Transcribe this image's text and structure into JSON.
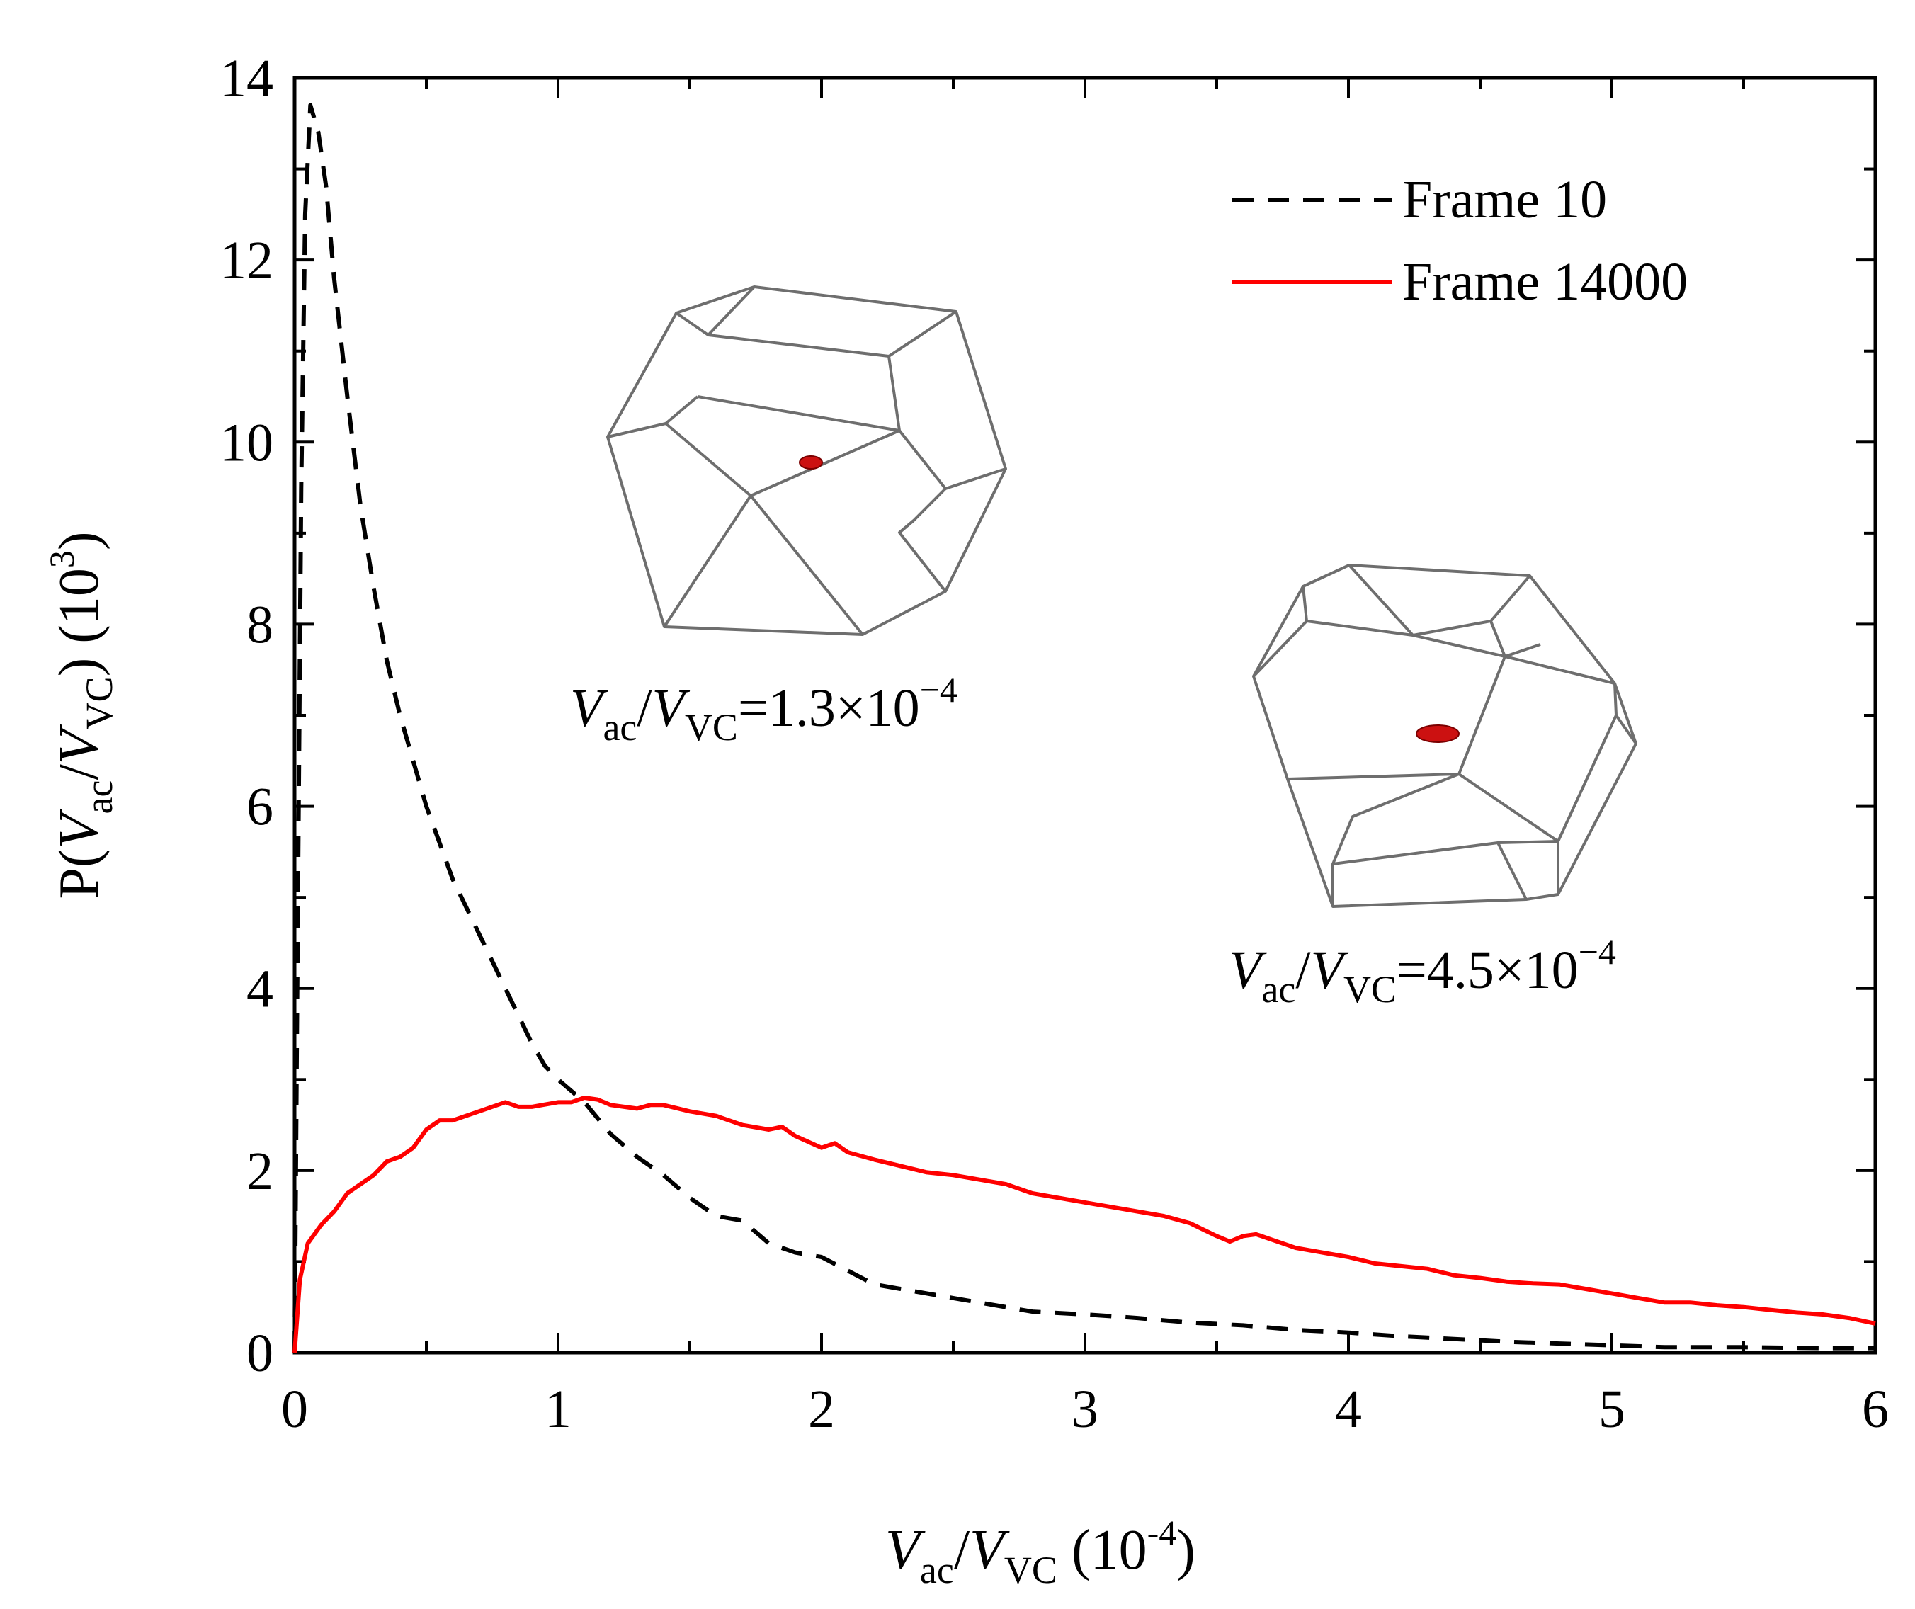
{
  "chart_data": {
    "type": "line",
    "xlabel": {
      "var1": "V",
      "sub1": "ac",
      "slash": "/",
      "var2": "V",
      "sub2": "VC",
      "unit_open": " (10",
      "unit_sup": "-4",
      "unit_close": ")"
    },
    "ylabel": {
      "prefix": "P(",
      "var1": "V",
      "sub1": "ac",
      "slash": "/",
      "var2": "V",
      "sub2": "VC",
      "mid": ") (10",
      "sup": "3",
      "close": ")"
    },
    "xlim": [
      0,
      6
    ],
    "ylim": [
      0,
      14
    ],
    "x_ticks": [
      0,
      1,
      2,
      3,
      4,
      5,
      6
    ],
    "y_ticks": [
      0,
      2,
      4,
      6,
      8,
      10,
      12,
      14
    ],
    "series": [
      {
        "name": "Frame 10",
        "style": "dashed",
        "color": "#000000",
        "points": [
          [
            0,
            0
          ],
          [
            0.01,
            4.0
          ],
          [
            0.025,
            9.5
          ],
          [
            0.04,
            12.5
          ],
          [
            0.06,
            13.7
          ],
          [
            0.09,
            13.4
          ],
          [
            0.12,
            12.8
          ],
          [
            0.15,
            11.8
          ],
          [
            0.2,
            10.5
          ],
          [
            0.25,
            9.3
          ],
          [
            0.3,
            8.4
          ],
          [
            0.35,
            7.6
          ],
          [
            0.4,
            7.0
          ],
          [
            0.45,
            6.5
          ],
          [
            0.5,
            6.0
          ],
          [
            0.55,
            5.6
          ],
          [
            0.6,
            5.2
          ],
          [
            0.65,
            4.9
          ],
          [
            0.7,
            4.6
          ],
          [
            0.75,
            4.3
          ],
          [
            0.8,
            4.0
          ],
          [
            0.85,
            3.7
          ],
          [
            0.9,
            3.4
          ],
          [
            0.95,
            3.15
          ],
          [
            1.0,
            3.0
          ],
          [
            1.1,
            2.75
          ],
          [
            1.2,
            2.4
          ],
          [
            1.3,
            2.15
          ],
          [
            1.4,
            1.95
          ],
          [
            1.5,
            1.7
          ],
          [
            1.6,
            1.5
          ],
          [
            1.7,
            1.45
          ],
          [
            1.8,
            1.2
          ],
          [
            1.9,
            1.1
          ],
          [
            2.0,
            1.05
          ],
          [
            2.1,
            0.9
          ],
          [
            2.2,
            0.75
          ],
          [
            2.3,
            0.7
          ],
          [
            2.4,
            0.65
          ],
          [
            2.5,
            0.6
          ],
          [
            2.6,
            0.55
          ],
          [
            2.7,
            0.5
          ],
          [
            2.8,
            0.45
          ],
          [
            3.0,
            0.42
          ],
          [
            3.2,
            0.38
          ],
          [
            3.4,
            0.33
          ],
          [
            3.6,
            0.3
          ],
          [
            3.8,
            0.25
          ],
          [
            4.0,
            0.22
          ],
          [
            4.2,
            0.18
          ],
          [
            4.4,
            0.15
          ],
          [
            4.6,
            0.12
          ],
          [
            4.8,
            0.1
          ],
          [
            5.0,
            0.08
          ],
          [
            5.2,
            0.06
          ],
          [
            5.5,
            0.06
          ],
          [
            5.8,
            0.05
          ],
          [
            6.0,
            0.05
          ]
        ]
      },
      {
        "name": "Frame 14000",
        "style": "solid",
        "color": "#ff0000",
        "points": [
          [
            0,
            0
          ],
          [
            0.02,
            0.8
          ],
          [
            0.05,
            1.2
          ],
          [
            0.1,
            1.4
          ],
          [
            0.15,
            1.55
          ],
          [
            0.2,
            1.75
          ],
          [
            0.25,
            1.85
          ],
          [
            0.3,
            1.95
          ],
          [
            0.35,
            2.1
          ],
          [
            0.4,
            2.15
          ],
          [
            0.45,
            2.25
          ],
          [
            0.5,
            2.45
          ],
          [
            0.55,
            2.55
          ],
          [
            0.6,
            2.55
          ],
          [
            0.65,
            2.6
          ],
          [
            0.7,
            2.65
          ],
          [
            0.8,
            2.75
          ],
          [
            0.85,
            2.7
          ],
          [
            0.9,
            2.7
          ],
          [
            1.0,
            2.75
          ],
          [
            1.05,
            2.75
          ],
          [
            1.1,
            2.8
          ],
          [
            1.15,
            2.78
          ],
          [
            1.2,
            2.72
          ],
          [
            1.3,
            2.68
          ],
          [
            1.35,
            2.72
          ],
          [
            1.4,
            2.72
          ],
          [
            1.5,
            2.65
          ],
          [
            1.6,
            2.6
          ],
          [
            1.7,
            2.5
          ],
          [
            1.8,
            2.45
          ],
          [
            1.85,
            2.48
          ],
          [
            1.9,
            2.38
          ],
          [
            2.0,
            2.25
          ],
          [
            2.05,
            2.3
          ],
          [
            2.1,
            2.2
          ],
          [
            2.2,
            2.12
          ],
          [
            2.3,
            2.05
          ],
          [
            2.4,
            1.98
          ],
          [
            2.5,
            1.95
          ],
          [
            2.6,
            1.9
          ],
          [
            2.7,
            1.85
          ],
          [
            2.8,
            1.75
          ],
          [
            2.9,
            1.7
          ],
          [
            3.0,
            1.65
          ],
          [
            3.1,
            1.6
          ],
          [
            3.2,
            1.55
          ],
          [
            3.3,
            1.5
          ],
          [
            3.4,
            1.42
          ],
          [
            3.5,
            1.28
          ],
          [
            3.55,
            1.22
          ],
          [
            3.6,
            1.28
          ],
          [
            3.65,
            1.3
          ],
          [
            3.7,
            1.25
          ],
          [
            3.8,
            1.15
          ],
          [
            3.9,
            1.1
          ],
          [
            4.0,
            1.05
          ],
          [
            4.1,
            0.98
          ],
          [
            4.2,
            0.95
          ],
          [
            4.3,
            0.92
          ],
          [
            4.4,
            0.85
          ],
          [
            4.5,
            0.82
          ],
          [
            4.6,
            0.78
          ],
          [
            4.7,
            0.76
          ],
          [
            4.8,
            0.75
          ],
          [
            4.9,
            0.7
          ],
          [
            5.0,
            0.65
          ],
          [
            5.1,
            0.6
          ],
          [
            5.2,
            0.55
          ],
          [
            5.3,
            0.55
          ],
          [
            5.4,
            0.52
          ],
          [
            5.5,
            0.5
          ],
          [
            5.6,
            0.47
          ],
          [
            5.7,
            0.44
          ],
          [
            5.8,
            0.42
          ],
          [
            5.9,
            0.38
          ],
          [
            6.0,
            0.32
          ]
        ]
      }
    ],
    "legend": {
      "position": "top-right",
      "entries": [
        "Frame 10",
        "Frame 14000"
      ]
    },
    "annotations": [
      {
        "var1": "V",
        "sub1": "ac",
        "slash": "/",
        "var2": "V",
        "sub2": "VC",
        "eq": "=1.3×10",
        "sup": "−4"
      },
      {
        "var1": "V",
        "sub1": "ac",
        "slash": "/",
        "var2": "V",
        "sub2": "VC",
        "eq": "=4.5×10",
        "sup": "−4"
      }
    ],
    "grid": false
  },
  "colors": {
    "axis": "#000000",
    "cell_edges": "#6e6e6e",
    "particle": "#cc1111"
  }
}
